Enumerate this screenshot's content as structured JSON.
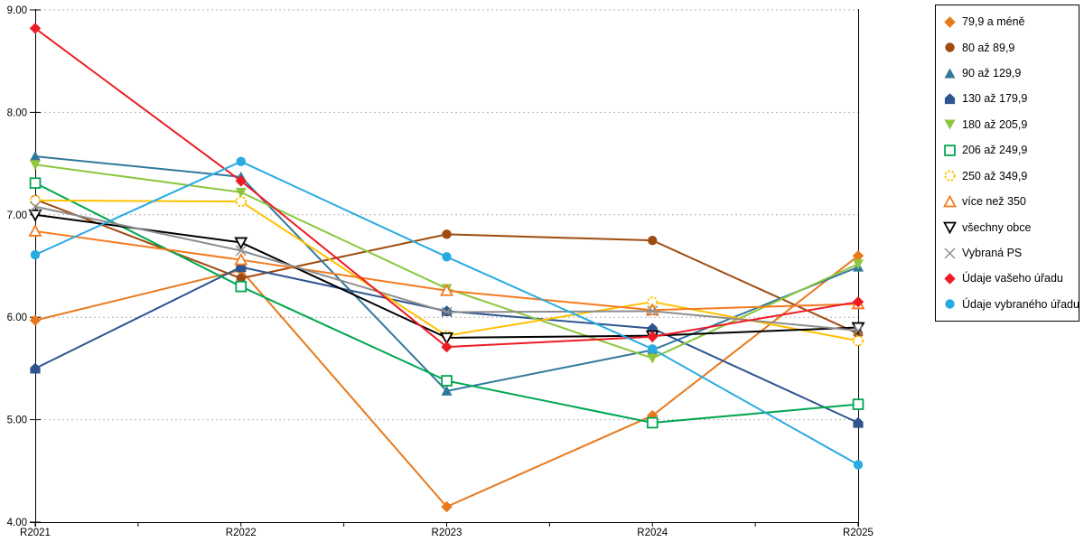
{
  "chart_data": {
    "type": "line",
    "title": "",
    "xlabel": "",
    "ylabel": "",
    "categories": [
      "R2021",
      "R2022",
      "R2023",
      "R2024",
      "R2025"
    ],
    "ylim": [
      4.0,
      9.0
    ],
    "ytick_step": 1.0,
    "ytick_labels": [
      "9.00",
      "8.00",
      "7.00",
      "6.00",
      "5.00",
      "4.00"
    ],
    "grid": "horizontal-dotted",
    "legend_position": "right-outside",
    "colors": {
      "axis": "#000000",
      "gridline": "#b3b3b3",
      "background": "#ffffff"
    },
    "series": [
      {
        "name": "79,9 a méně",
        "color": "#e8791d",
        "marker": "diamond",
        "fill": "filled",
        "values": [
          5.97,
          6.46,
          4.15,
          5.04,
          6.6
        ]
      },
      {
        "name": "80 až 89,9",
        "color": "#9e4b10",
        "marker": "circle",
        "fill": "filled",
        "values": [
          7.15,
          6.38,
          6.81,
          6.75,
          5.84
        ]
      },
      {
        "name": "90 až 129,9",
        "color": "#31789b",
        "marker": "triangle-up",
        "fill": "filled",
        "values": [
          7.57,
          7.37,
          5.28,
          5.68,
          6.49
        ]
      },
      {
        "name": "130 až 179,9",
        "color": "#2f5590",
        "marker": "pentagon",
        "fill": "filled",
        "values": [
          5.5,
          6.49,
          6.06,
          5.89,
          4.97
        ]
      },
      {
        "name": "180 až 205,9",
        "color": "#8cc63e",
        "marker": "triangle-down",
        "fill": "filled",
        "values": [
          7.49,
          7.22,
          6.28,
          5.6,
          6.52
        ]
      },
      {
        "name": "206 až 249,9",
        "color": "#00a651",
        "marker": "square",
        "fill": "open",
        "values": [
          7.31,
          6.3,
          5.38,
          4.97,
          5.15
        ]
      },
      {
        "name": "250 až 349,9",
        "color": "#ffc000",
        "marker": "circle",
        "fill": "open",
        "dashed_marker": true,
        "values": [
          7.14,
          7.13,
          5.82,
          6.15,
          5.77
        ]
      },
      {
        "name": "více než 350",
        "color": "#f47a1f",
        "marker": "triangle-up",
        "fill": "open",
        "values": [
          6.84,
          6.56,
          6.26,
          6.07,
          6.13
        ]
      },
      {
        "name": "všechny obce",
        "color": "#000000",
        "marker": "triangle-down",
        "fill": "open",
        "values": [
          7.0,
          6.73,
          5.8,
          5.82,
          5.9
        ]
      },
      {
        "name": "Vybraná PS",
        "color": "#8c8c8c",
        "marker": "x",
        "fill": "open",
        "values": [
          7.08,
          6.65,
          6.05,
          6.06,
          5.87
        ]
      },
      {
        "name": "Údaje vašeho úřadu",
        "color": "#ed1c24",
        "marker": "diamond",
        "fill": "filled",
        "values": [
          8.82,
          7.33,
          5.71,
          5.81,
          6.15
        ]
      },
      {
        "name": "Údaje vybraného úřadu",
        "color": "#29abe2",
        "marker": "circle",
        "fill": "filled",
        "values": [
          6.61,
          7.52,
          6.59,
          5.69,
          4.56
        ]
      }
    ]
  }
}
